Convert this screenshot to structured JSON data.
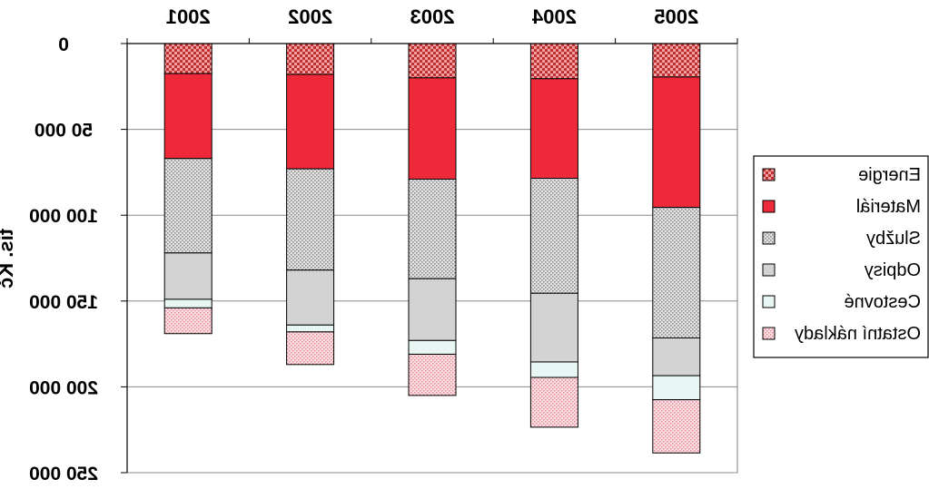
{
  "chart_data": {
    "type": "bar",
    "stacked": true,
    "orientation": "vertical, inverted y-axis (0 at top), image mirrored",
    "categories": [
      "2001",
      "2002",
      "2003",
      "2004",
      "2005"
    ],
    "ylabel": "tis. Kč",
    "ylim": [
      0,
      250000
    ],
    "y_ticks": [
      "0",
      "50 000",
      "100 000",
      "150 000",
      "200 000",
      "250 000"
    ],
    "grid": true,
    "legend_position": "right",
    "series": [
      {
        "name": "Energie",
        "color": "#e57373",
        "pattern": "checker",
        "values": [
          17500,
          18000,
          20000,
          20500,
          19500
        ]
      },
      {
        "name": "Materiál",
        "color": "#ee2a3a",
        "pattern": "solid",
        "values": [
          49500,
          55000,
          59000,
          58000,
          76000
        ]
      },
      {
        "name": "Služby",
        "color": "#d9d9d9",
        "pattern": "dots",
        "values": [
          55000,
          59000,
          58000,
          67000,
          76000
        ]
      },
      {
        "name": "Odpisy",
        "color": "#d3d3d3",
        "pattern": "solid",
        "values": [
          27000,
          32000,
          36000,
          40000,
          22000
        ]
      },
      {
        "name": "Cestovné",
        "color": "#e8f6f4",
        "pattern": "solid",
        "values": [
          5000,
          4000,
          8000,
          9000,
          14000
        ]
      },
      {
        "name": "Ostatní náklady",
        "color": "#f6c6cc",
        "pattern": "dots",
        "values": [
          15000,
          19000,
          24000,
          29000,
          31000
        ]
      }
    ]
  }
}
